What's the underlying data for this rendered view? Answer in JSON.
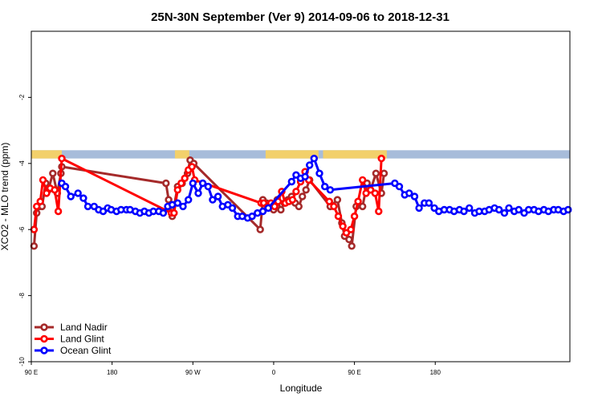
{
  "chart_data": {
    "type": "line",
    "title": "25N-30N September (Ver 9)   2014-09-06 to 2018-12-31",
    "xlabel": "Longitude",
    "ylabel": "XCO2 - MLO trend (ppm)",
    "xlim": [
      0,
      600
    ],
    "ylim": [
      -10,
      0
    ],
    "x_ticks": [
      {
        "value": 0,
        "label": "90 E"
      },
      {
        "value": 90,
        "label": "180"
      },
      {
        "value": 180,
        "label": "90 W"
      },
      {
        "value": 270,
        "label": "0"
      },
      {
        "value": 360,
        "label": "90 E"
      },
      {
        "value": 450,
        "label": "180"
      }
    ],
    "y_ticks": [
      {
        "value": -2,
        "label": "-2"
      },
      {
        "value": -4,
        "label": "-4"
      },
      {
        "value": -6,
        "label": "-6"
      },
      {
        "value": -8,
        "label": "-8"
      },
      {
        "value": -10,
        "label": "-10"
      }
    ],
    "grid": false,
    "legend_position": "bottom-left",
    "land_ocean_band": {
      "y_range": [
        -3.85,
        -3.6
      ],
      "land_color": "#f2d06b",
      "ocean_color": "#a7bcda",
      "land_segments": [
        [
          0,
          34
        ],
        [
          160,
          176
        ],
        [
          261,
          320
        ],
        [
          325,
          396
        ]
      ]
    },
    "series": [
      {
        "name": "Land Nadir",
        "color": "#a52a2a",
        "x": [
          3,
          6,
          9,
          12,
          16,
          19,
          24,
          29,
          33,
          34,
          150,
          153,
          157,
          163,
          168,
          174,
          177,
          181,
          255,
          258,
          262,
          266,
          270,
          274,
          278,
          282,
          286,
          290,
          294,
          298,
          302,
          306,
          310,
          333,
          341,
          346,
          349,
          354,
          357,
          362,
          369,
          374,
          378,
          384,
          390,
          393
        ],
        "y": [
          -6.5,
          -5.5,
          -5.3,
          -5.3,
          -4.6,
          -4.8,
          -4.3,
          -4.9,
          -4.3,
          -4.1,
          -4.6,
          -5.1,
          -5.6,
          -4.7,
          -4.6,
          -4.3,
          -3.9,
          -4.0,
          -6.0,
          -5.1,
          -5.2,
          -5.3,
          -5.4,
          -5.1,
          -5.4,
          -5.2,
          -5.1,
          -5.0,
          -5.2,
          -5.3,
          -5.0,
          -4.8,
          -4.5,
          -5.3,
          -5.1,
          -5.8,
          -6.2,
          -6.3,
          -6.5,
          -5.3,
          -5.3,
          -4.6,
          -4.8,
          -4.3,
          -4.9,
          -4.3
        ]
      },
      {
        "name": "Land Glint",
        "color": "#ff0000",
        "x": [
          3,
          6,
          10,
          13,
          17,
          21,
          26,
          30,
          34,
          156,
          159,
          163,
          167,
          171,
          175,
          179,
          182,
          256,
          259,
          263,
          267,
          271,
          275,
          279,
          283,
          287,
          291,
          295,
          300,
          305,
          309,
          332,
          337,
          342,
          347,
          351,
          356,
          360,
          364,
          369,
          373,
          378,
          383,
          387,
          390
        ],
        "y": [
          -6.0,
          -5.3,
          -5.15,
          -4.5,
          -4.9,
          -4.75,
          -4.8,
          -5.45,
          -3.85,
          -5.5,
          -5.5,
          -4.8,
          -4.6,
          -4.45,
          -4.2,
          -4.1,
          -4.5,
          -5.2,
          -5.2,
          -5.3,
          -5.2,
          -5.3,
          -5.15,
          -4.85,
          -5.2,
          -5.15,
          -5.1,
          -4.85,
          -4.55,
          -4.25,
          -4.5,
          -5.15,
          -5.3,
          -5.6,
          -5.9,
          -6.1,
          -6.0,
          -5.6,
          -5.15,
          -4.5,
          -4.9,
          -4.8,
          -4.9,
          -5.45,
          -3.85
        ]
      },
      {
        "name": "Ocean Glint",
        "color": "#0000ff",
        "x": [
          34,
          38,
          44,
          52,
          58,
          63,
          70,
          75,
          80,
          85,
          89,
          95,
          100,
          106,
          110,
          116,
          121,
          126,
          131,
          136,
          142,
          147,
          152,
          157,
          163,
          169,
          175,
          180,
          186,
          191,
          197,
          202,
          208,
          213,
          219,
          224,
          230,
          235,
          241,
          246,
          252,
          258,
          264,
          290,
          295,
          300,
          305,
          310,
          315,
          321,
          327,
          333,
          405,
          410,
          416,
          421,
          427,
          432,
          438,
          443,
          449,
          454,
          460,
          466,
          471,
          477,
          482,
          488,
          494,
          499,
          505,
          510,
          516,
          521,
          527,
          532,
          538,
          543,
          549,
          554,
          560,
          565,
          571,
          576,
          582,
          587,
          593,
          598
        ],
        "y": [
          -4.6,
          -4.7,
          -5.0,
          -4.9,
          -5.05,
          -5.3,
          -5.3,
          -5.4,
          -5.45,
          -5.35,
          -5.4,
          -5.45,
          -5.4,
          -5.4,
          -5.4,
          -5.45,
          -5.5,
          -5.45,
          -5.5,
          -5.45,
          -5.45,
          -5.5,
          -5.3,
          -5.25,
          -5.2,
          -5.3,
          -5.1,
          -4.6,
          -4.9,
          -4.6,
          -4.7,
          -5.1,
          -5.0,
          -5.3,
          -5.25,
          -5.35,
          -5.6,
          -5.6,
          -5.65,
          -5.6,
          -5.5,
          -5.45,
          -5.35,
          -4.55,
          -4.35,
          -4.45,
          -4.4,
          -4.05,
          -3.85,
          -4.3,
          -4.7,
          -4.8,
          -4.6,
          -4.7,
          -4.95,
          -4.9,
          -5.0,
          -5.35,
          -5.2,
          -5.2,
          -5.35,
          -5.45,
          -5.4,
          -5.4,
          -5.45,
          -5.4,
          -5.45,
          -5.35,
          -5.5,
          -5.45,
          -5.45,
          -5.4,
          -5.35,
          -5.4,
          -5.5,
          -5.35,
          -5.45,
          -5.4,
          -5.5,
          -5.4,
          -5.4,
          -5.45,
          -5.4,
          -5.45,
          -5.4,
          -5.4,
          -5.45,
          -5.4
        ]
      }
    ]
  }
}
